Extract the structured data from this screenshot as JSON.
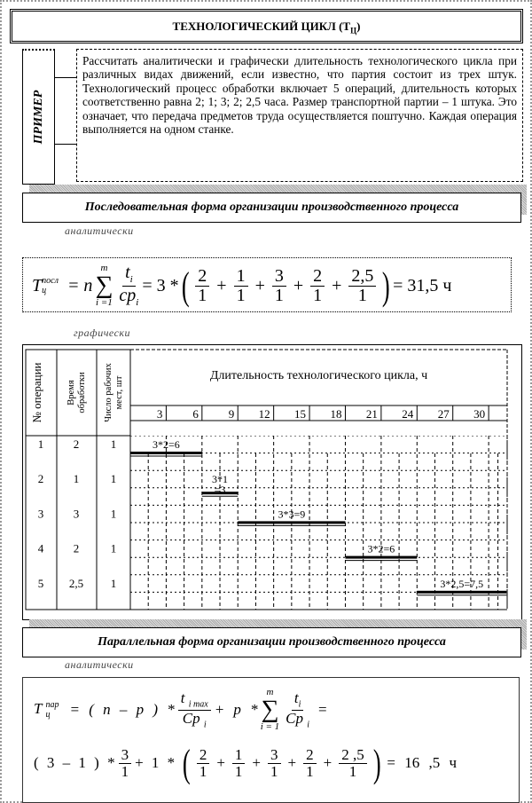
{
  "title": {
    "main": "ТЕХНОЛОГИЧЕСКИЙ ЦИКЛ (Т",
    "sub": "Ц",
    "close": ")"
  },
  "example": {
    "label": "ПРИМЕР",
    "text": "Рассчитать аналитически и графически длительность технологического цикла при различных видах движений, если известно, что партия состоит из трех штук. Технологический процесс обработки включает 5 операций, длительность которых соответственно равна 2; 1; 3; 2; 2,5 часа. Размер транспортной партии – 1 штука. Это означает, что передача предметов труда осуществляется поштучно. Каждая операция выполняется на одном станке."
  },
  "sequential": {
    "header": "Последовательная форма организации производственного процесса",
    "analytic_label": "аналитически",
    "graphic_label": "графически",
    "formula": {
      "T": "T",
      "sup": "посл",
      "sub": "ц",
      "eq_n": "= n",
      "sum_top": "m",
      "sum_bottom": "i =1",
      "num": "t",
      "num_sub": "i",
      "den": "cp",
      "den_sub": "i",
      "mult": "= 3 *",
      "terms": [
        {
          "num": "2",
          "den": "1"
        },
        {
          "num": "1",
          "den": "1"
        },
        {
          "num": "3",
          "den": "1"
        },
        {
          "num": "2",
          "den": "1"
        },
        {
          "num": "2,5",
          "den": "1"
        }
      ],
      "result": "= 31,5 ч"
    }
  },
  "gantt": {
    "col_headers": [
      "№ операции",
      "Время обработки",
      "Число рабочих мест, шт"
    ],
    "chart_title": "Длительность технологического цикла, ч",
    "ticks": [
      "3",
      "6",
      "9",
      "12",
      "15",
      "18",
      "21",
      "24",
      "27",
      "30"
    ],
    "rows": [
      {
        "op": "1",
        "time": "2",
        "places": "1",
        "start": 0,
        "duration": 6,
        "label": "3*2=6"
      },
      {
        "op": "2",
        "time": "1",
        "places": "1",
        "start": 6,
        "duration": 3,
        "label": "3*1 =3"
      },
      {
        "op": "3",
        "time": "3",
        "places": "1",
        "start": 9,
        "duration": 9,
        "label": "3*3=9"
      },
      {
        "op": "4",
        "time": "2",
        "places": "1",
        "start": 18,
        "duration": 6,
        "label": "3*2=6"
      },
      {
        "op": "5",
        "time": "2,5",
        "places": "1",
        "start": 24,
        "duration": 7.5,
        "label": "3*2,5=7,5"
      }
    ]
  },
  "parallel": {
    "header": "Параллельная форма организации производственного процесса",
    "analytic_label": "аналитически",
    "formula_line1": {
      "T": "T",
      "sup": "пар",
      "sub": "ц",
      "eq": "= ( n – p ) *",
      "num": "t",
      "num_sub": "i max",
      "den": "Cp",
      "den_sub": "i",
      "plus_p": "+ p *",
      "sum_top": "m",
      "sum_bottom": "i = 1",
      "num2": "t",
      "num2_sub": "i",
      "den2": "Cp",
      "den2_sub": "i",
      "end": "="
    },
    "formula_line2": {
      "start": "( 3 – 1 ) *",
      "f_num": "3",
      "f_den": "1",
      "mid": "+ 1 *",
      "terms": [
        {
          "num": "2",
          "den": "1"
        },
        {
          "num": "1",
          "den": "1"
        },
        {
          "num": "3",
          "den": "1"
        },
        {
          "num": "2",
          "den": "1"
        },
        {
          "num": "2 ,5",
          "den": "1"
        }
      ],
      "result": "= 16 ,5 ч"
    }
  }
}
